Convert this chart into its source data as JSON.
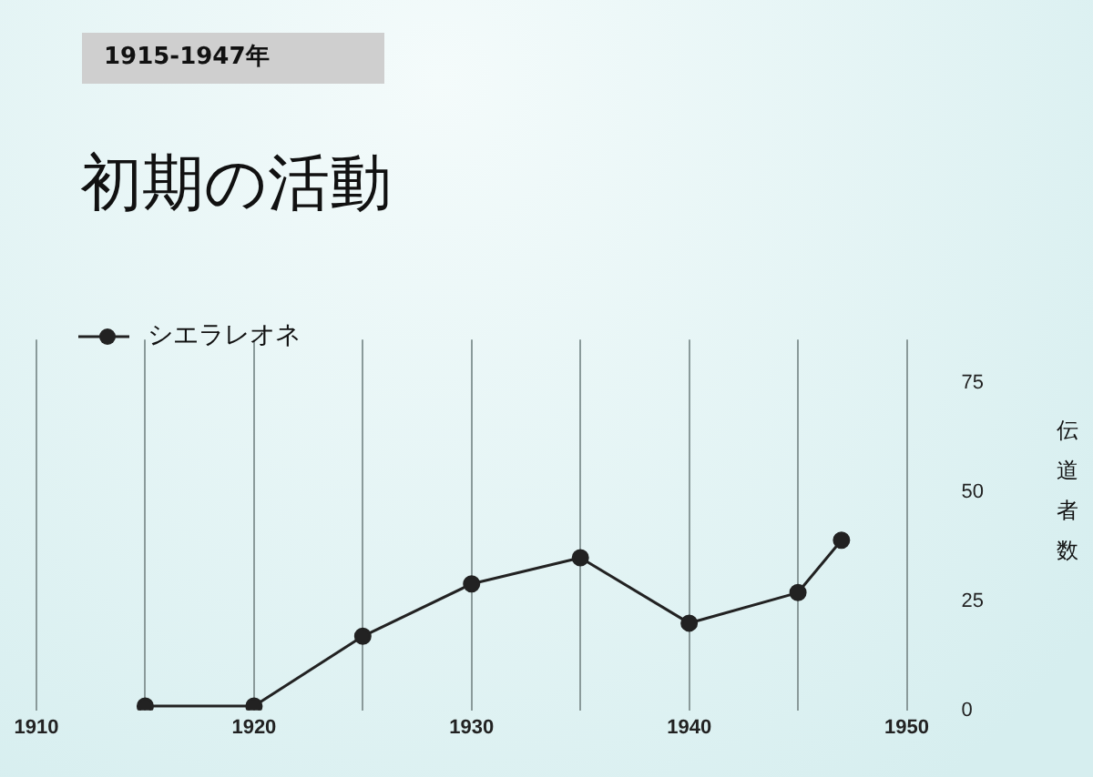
{
  "chart_data": {
    "type": "line",
    "title": "初期の活動",
    "subtitle": "1915-1947年",
    "ylabel": "伝道者数",
    "x": [
      1915,
      1920,
      1925,
      1930,
      1935,
      1940,
      1945,
      1947
    ],
    "series": [
      {
        "name": "シエラレオネ",
        "color": "#222222",
        "values": [
          1,
          1,
          17,
          29,
          35,
          20,
          27,
          39
        ]
      }
    ],
    "xlim": [
      1910,
      1950
    ],
    "xticks": [
      1910,
      {
        "value": 1915,
        "label": null
      },
      1920,
      {
        "value": 1925,
        "label": null
      },
      1930,
      {
        "value": 1935,
        "label": null
      },
      1940,
      {
        "value": 1945,
        "label": null
      },
      1950
    ],
    "ylim": [
      0,
      85
    ],
    "yticks": [
      0,
      25,
      50,
      75
    ],
    "grid": "x",
    "legend": "top left",
    "marker": "circle",
    "line_style": "solid"
  }
}
